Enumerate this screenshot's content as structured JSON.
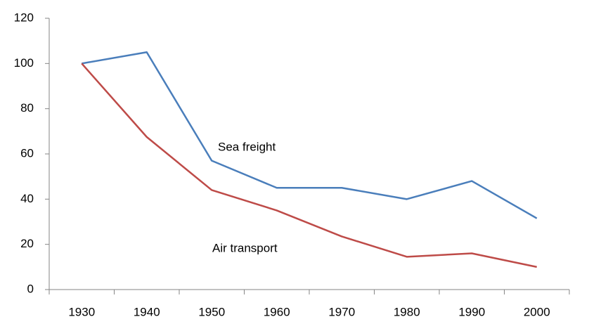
{
  "chart_data": {
    "type": "line",
    "categories": [
      "1930",
      "1940",
      "1950",
      "1960",
      "1970",
      "1980",
      "1990",
      "2000"
    ],
    "series": [
      {
        "name": "Sea freight",
        "color": "#4a7ebb",
        "values": [
          100,
          105,
          57,
          45,
          45,
          40,
          48,
          31.5
        ]
      },
      {
        "name": "Air transport",
        "color": "#be4b48",
        "values": [
          100,
          67.5,
          44,
          35,
          23.5,
          14.5,
          16,
          10
        ]
      }
    ],
    "ylim": [
      0,
      120
    ],
    "yticks": [
      0,
      20,
      40,
      60,
      80,
      100,
      120
    ],
    "grid": false
  }
}
